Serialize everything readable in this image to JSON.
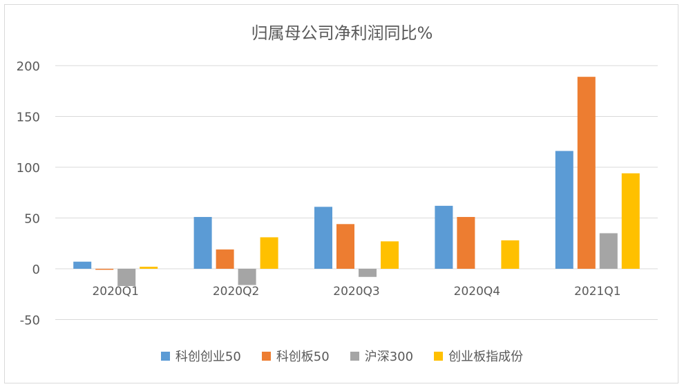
{
  "chart_data": {
    "type": "bar",
    "title": "归属母公司净利润同比%",
    "categories": [
      "2020Q1",
      "2020Q2",
      "2020Q3",
      "2020Q4",
      "2021Q1"
    ],
    "series": [
      {
        "name": "科创创业50",
        "color": "#5b9bd5",
        "values": [
          7,
          51,
          61,
          62,
          116
        ]
      },
      {
        "name": "科创板50",
        "color": "#ed7d31",
        "values": [
          -1,
          19,
          44,
          51,
          189
        ]
      },
      {
        "name": "沪深300",
        "color": "#a5a5a5",
        "values": [
          -17,
          -16,
          -8,
          0,
          35
        ]
      },
      {
        "name": "创业板指成份",
        "color": "#ffc000",
        "values": [
          2,
          31,
          27,
          28,
          94
        ]
      }
    ],
    "ylim": [
      -50,
      200
    ],
    "yticks": [
      "200",
      "150",
      "100",
      "50",
      "0",
      "-50"
    ],
    "grid": true,
    "legend_position": "bottom",
    "xlabel": "",
    "ylabel": ""
  }
}
